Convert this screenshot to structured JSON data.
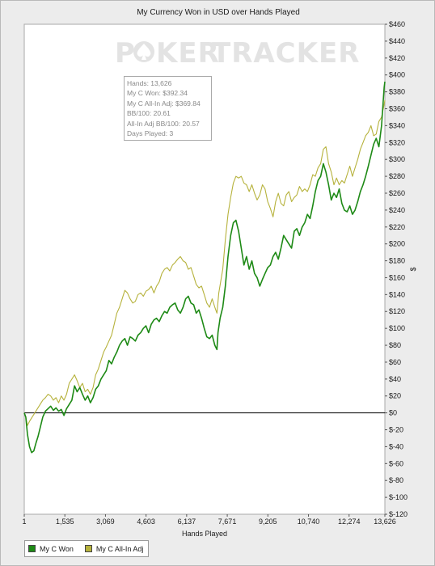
{
  "chart_data": {
    "type": "line",
    "title": "My Currency Won in USD over Hands Played",
    "xlabel": "Hands Played",
    "ylabel": "$",
    "xlim": [
      1,
      13626
    ],
    "ylim": [
      -120,
      460
    ],
    "x_ticks": [
      1,
      1535,
      3069,
      4603,
      6137,
      7671,
      9205,
      10740,
      12274,
      13626
    ],
    "x_tick_labels": [
      "1",
      "1,535",
      "3,069",
      "4,603",
      "6,137",
      "7,671",
      "9,205",
      "10,740",
      "12,274",
      "13,626"
    ],
    "y_ticks": [
      460,
      440,
      420,
      400,
      380,
      360,
      340,
      320,
      300,
      280,
      260,
      240,
      220,
      200,
      180,
      160,
      140,
      120,
      100,
      80,
      60,
      40,
      20,
      0,
      -20,
      -40,
      -60,
      -80,
      -100,
      -120
    ],
    "y_tick_labels": [
      "$460",
      "$440",
      "$420",
      "$400",
      "$380",
      "$360",
      "$340",
      "$320",
      "$300",
      "$280",
      "$260",
      "$240",
      "$220",
      "$200",
      "$180",
      "$160",
      "$140",
      "$120",
      "$100",
      "$80",
      "$60",
      "$40",
      "$20",
      "$0",
      "$-20",
      "$-40",
      "$-60",
      "$-80",
      "$-100",
      "$-120"
    ],
    "y_axis_position": "right",
    "grid": false,
    "legend_position": "bottom-left",
    "series": [
      {
        "name": "My C Won",
        "color": "#1e8a16",
        "points": [
          [
            1,
            0
          ],
          [
            60,
            -5
          ],
          [
            120,
            -25
          ],
          [
            200,
            -40
          ],
          [
            280,
            -47
          ],
          [
            360,
            -45
          ],
          [
            450,
            -35
          ],
          [
            520,
            -28
          ],
          [
            600,
            -18
          ],
          [
            700,
            -5
          ],
          [
            800,
            2
          ],
          [
            900,
            5
          ],
          [
            1000,
            8
          ],
          [
            1100,
            3
          ],
          [
            1200,
            6
          ],
          [
            1300,
            2
          ],
          [
            1400,
            4
          ],
          [
            1500,
            -3
          ],
          [
            1600,
            5
          ],
          [
            1700,
            10
          ],
          [
            1800,
            15
          ],
          [
            1900,
            32
          ],
          [
            2000,
            25
          ],
          [
            2100,
            30
          ],
          [
            2200,
            22
          ],
          [
            2300,
            15
          ],
          [
            2400,
            20
          ],
          [
            2500,
            12
          ],
          [
            2600,
            18
          ],
          [
            2700,
            28
          ],
          [
            2800,
            32
          ],
          [
            2900,
            40
          ],
          [
            3000,
            45
          ],
          [
            3100,
            50
          ],
          [
            3200,
            62
          ],
          [
            3300,
            58
          ],
          [
            3400,
            66
          ],
          [
            3500,
            72
          ],
          [
            3600,
            80
          ],
          [
            3700,
            85
          ],
          [
            3800,
            88
          ],
          [
            3900,
            80
          ],
          [
            4000,
            90
          ],
          [
            4100,
            88
          ],
          [
            4200,
            85
          ],
          [
            4300,
            92
          ],
          [
            4400,
            95
          ],
          [
            4500,
            100
          ],
          [
            4600,
            103
          ],
          [
            4700,
            95
          ],
          [
            4800,
            105
          ],
          [
            4900,
            110
          ],
          [
            5000,
            112
          ],
          [
            5100,
            108
          ],
          [
            5200,
            115
          ],
          [
            5300,
            120
          ],
          [
            5400,
            118
          ],
          [
            5500,
            125
          ],
          [
            5600,
            128
          ],
          [
            5700,
            130
          ],
          [
            5800,
            122
          ],
          [
            5900,
            118
          ],
          [
            6000,
            125
          ],
          [
            6100,
            135
          ],
          [
            6200,
            138
          ],
          [
            6300,
            130
          ],
          [
            6400,
            128
          ],
          [
            6500,
            118
          ],
          [
            6600,
            122
          ],
          [
            6700,
            112
          ],
          [
            6800,
            100
          ],
          [
            6900,
            90
          ],
          [
            7000,
            88
          ],
          [
            7100,
            92
          ],
          [
            7200,
            80
          ],
          [
            7280,
            75
          ],
          [
            7320,
            95
          ],
          [
            7400,
            112
          ],
          [
            7500,
            125
          ],
          [
            7600,
            150
          ],
          [
            7700,
            185
          ],
          [
            7800,
            210
          ],
          [
            7900,
            225
          ],
          [
            8000,
            228
          ],
          [
            8100,
            215
          ],
          [
            8200,
            195
          ],
          [
            8300,
            175
          ],
          [
            8400,
            185
          ],
          [
            8500,
            170
          ],
          [
            8600,
            180
          ],
          [
            8700,
            165
          ],
          [
            8800,
            160
          ],
          [
            8900,
            150
          ],
          [
            9000,
            158
          ],
          [
            9100,
            165
          ],
          [
            9200,
            172
          ],
          [
            9300,
            175
          ],
          [
            9400,
            185
          ],
          [
            9500,
            190
          ],
          [
            9600,
            182
          ],
          [
            9700,
            195
          ],
          [
            9800,
            210
          ],
          [
            9900,
            205
          ],
          [
            10000,
            200
          ],
          [
            10100,
            195
          ],
          [
            10200,
            215
          ],
          [
            10300,
            218
          ],
          [
            10400,
            210
          ],
          [
            10500,
            220
          ],
          [
            10600,
            225
          ],
          [
            10700,
            235
          ],
          [
            10800,
            230
          ],
          [
            10900,
            245
          ],
          [
            11000,
            262
          ],
          [
            11100,
            275
          ],
          [
            11200,
            280
          ],
          [
            11300,
            295
          ],
          [
            11400,
            285
          ],
          [
            11500,
            270
          ],
          [
            11600,
            252
          ],
          [
            11700,
            260
          ],
          [
            11800,
            255
          ],
          [
            11900,
            265
          ],
          [
            12000,
            248
          ],
          [
            12100,
            240
          ],
          [
            12200,
            238
          ],
          [
            12300,
            245
          ],
          [
            12400,
            235
          ],
          [
            12500,
            240
          ],
          [
            12600,
            250
          ],
          [
            12700,
            262
          ],
          [
            12800,
            270
          ],
          [
            12900,
            280
          ],
          [
            13000,
            292
          ],
          [
            13100,
            305
          ],
          [
            13200,
            318
          ],
          [
            13300,
            325
          ],
          [
            13400,
            315
          ],
          [
            13500,
            340
          ],
          [
            13600,
            385
          ],
          [
            13626,
            392
          ]
        ]
      },
      {
        "name": "My C All-In Adj",
        "color": "#b6b23c",
        "points": [
          [
            1,
            0
          ],
          [
            60,
            -5
          ],
          [
            120,
            -15
          ],
          [
            200,
            -10
          ],
          [
            300,
            -5
          ],
          [
            400,
            0
          ],
          [
            500,
            5
          ],
          [
            600,
            10
          ],
          [
            700,
            15
          ],
          [
            800,
            18
          ],
          [
            900,
            22
          ],
          [
            1000,
            20
          ],
          [
            1100,
            15
          ],
          [
            1200,
            18
          ],
          [
            1300,
            12
          ],
          [
            1400,
            20
          ],
          [
            1500,
            15
          ],
          [
            1600,
            22
          ],
          [
            1700,
            35
          ],
          [
            1800,
            40
          ],
          [
            1900,
            45
          ],
          [
            2000,
            38
          ],
          [
            2100,
            30
          ],
          [
            2200,
            35
          ],
          [
            2300,
            25
          ],
          [
            2400,
            28
          ],
          [
            2500,
            22
          ],
          [
            2600,
            30
          ],
          [
            2700,
            45
          ],
          [
            2800,
            52
          ],
          [
            2900,
            62
          ],
          [
            3000,
            72
          ],
          [
            3100,
            78
          ],
          [
            3200,
            85
          ],
          [
            3300,
            92
          ],
          [
            3400,
            105
          ],
          [
            3500,
            118
          ],
          [
            3600,
            125
          ],
          [
            3700,
            135
          ],
          [
            3800,
            145
          ],
          [
            3900,
            142
          ],
          [
            4000,
            135
          ],
          [
            4100,
            130
          ],
          [
            4200,
            132
          ],
          [
            4300,
            140
          ],
          [
            4400,
            142
          ],
          [
            4500,
            138
          ],
          [
            4600,
            144
          ],
          [
            4700,
            146
          ],
          [
            4800,
            150
          ],
          [
            4900,
            142
          ],
          [
            5000,
            150
          ],
          [
            5100,
            155
          ],
          [
            5200,
            165
          ],
          [
            5300,
            170
          ],
          [
            5400,
            172
          ],
          [
            5500,
            168
          ],
          [
            5600,
            175
          ],
          [
            5700,
            178
          ],
          [
            5800,
            182
          ],
          [
            5900,
            185
          ],
          [
            6000,
            180
          ],
          [
            6100,
            178
          ],
          [
            6200,
            170
          ],
          [
            6300,
            172
          ],
          [
            6400,
            162
          ],
          [
            6500,
            152
          ],
          [
            6600,
            148
          ],
          [
            6700,
            150
          ],
          [
            6800,
            140
          ],
          [
            6900,
            130
          ],
          [
            7000,
            125
          ],
          [
            7100,
            135
          ],
          [
            7200,
            125
          ],
          [
            7280,
            118
          ],
          [
            7350,
            142
          ],
          [
            7500,
            170
          ],
          [
            7600,
            205
          ],
          [
            7700,
            235
          ],
          [
            7800,
            255
          ],
          [
            7900,
            272
          ],
          [
            8000,
            280
          ],
          [
            8100,
            278
          ],
          [
            8200,
            280
          ],
          [
            8300,
            272
          ],
          [
            8400,
            270
          ],
          [
            8500,
            262
          ],
          [
            8600,
            270
          ],
          [
            8700,
            260
          ],
          [
            8800,
            252
          ],
          [
            8900,
            258
          ],
          [
            9000,
            270
          ],
          [
            9100,
            265
          ],
          [
            9200,
            250
          ],
          [
            9300,
            242
          ],
          [
            9400,
            232
          ],
          [
            9500,
            250
          ],
          [
            9600,
            260
          ],
          [
            9700,
            248
          ],
          [
            9800,
            245
          ],
          [
            9900,
            258
          ],
          [
            10000,
            262
          ],
          [
            10100,
            250
          ],
          [
            10200,
            255
          ],
          [
            10300,
            258
          ],
          [
            10400,
            268
          ],
          [
            10500,
            262
          ],
          [
            10600,
            265
          ],
          [
            10700,
            262
          ],
          [
            10800,
            270
          ],
          [
            10900,
            282
          ],
          [
            11000,
            280
          ],
          [
            11100,
            290
          ],
          [
            11200,
            295
          ],
          [
            11300,
            312
          ],
          [
            11400,
            315
          ],
          [
            11500,
            295
          ],
          [
            11600,
            285
          ],
          [
            11700,
            270
          ],
          [
            11800,
            278
          ],
          [
            11900,
            270
          ],
          [
            12000,
            275
          ],
          [
            12100,
            272
          ],
          [
            12200,
            282
          ],
          [
            12300,
            292
          ],
          [
            12400,
            280
          ],
          [
            12500,
            290
          ],
          [
            12600,
            300
          ],
          [
            12700,
            312
          ],
          [
            12800,
            320
          ],
          [
            12900,
            328
          ],
          [
            13000,
            332
          ],
          [
            13100,
            340
          ],
          [
            13200,
            328
          ],
          [
            13300,
            330
          ],
          [
            13400,
            345
          ],
          [
            13500,
            350
          ],
          [
            13600,
            365
          ],
          [
            13626,
            370
          ]
        ]
      }
    ]
  },
  "watermark": {
    "part1": "P",
    "part2": "KER",
    "part3": "TRACKER"
  },
  "info": {
    "line1": "Hands: 13,626",
    "line2": "My C Won: $392.34",
    "line3": "My C All-In Adj: $369.84",
    "line4": "BB/100: 20.61",
    "line5": "All-In Adj BB/100: 20.57",
    "line6": "Days Played: 3"
  },
  "legend": [
    {
      "label": "My C Won",
      "color": "#1e8a16"
    },
    {
      "label": "My C All-In Adj",
      "color": "#b6b23c"
    }
  ]
}
